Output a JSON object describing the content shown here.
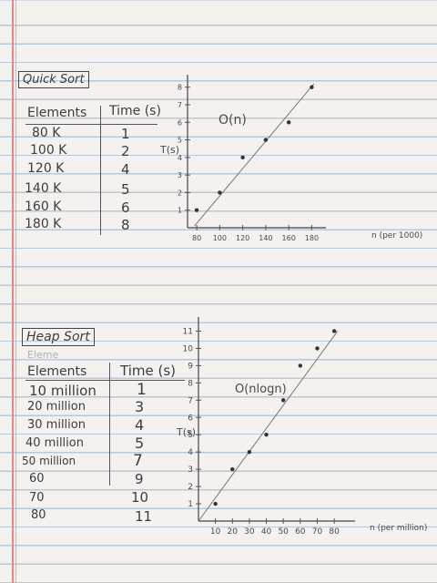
{
  "quick": {
    "title": "Quick Sort",
    "col_elements": "Elements",
    "col_time": "Time (s)",
    "rows": [
      {
        "elements": "80 K",
        "time": "1"
      },
      {
        "elements": "100 K",
        "time": "2"
      },
      {
        "elements": "120 K",
        "time": "4"
      },
      {
        "elements": "140 K",
        "time": "5"
      },
      {
        "elements": "160 K",
        "time": "6"
      },
      {
        "elements": "180 K",
        "time": "8"
      }
    ]
  },
  "heap": {
    "title": "Heap Sort",
    "crossed": "Eleme",
    "col_elements": "Elements",
    "col_time": "Time (s)",
    "rows": [
      {
        "elements": "10 million",
        "time": "1"
      },
      {
        "elements": "20 million",
        "time": "3"
      },
      {
        "elements": "30 million",
        "time": "4"
      },
      {
        "elements": "40 million",
        "time": "5"
      },
      {
        "elements": "50 million",
        "time": "7"
      },
      {
        "elements": "60",
        "time": "9"
      },
      {
        "elements": "70",
        "time": "10"
      },
      {
        "elements": "80",
        "time": "11"
      }
    ]
  },
  "chart_data": [
    {
      "type": "scatter",
      "title": "",
      "xlabel": "n (per 1000)",
      "ylabel": "T(s)",
      "annotation": "O(n)",
      "xticks": [
        "80",
        "100",
        "120",
        "140",
        "160",
        "180"
      ],
      "yticks": [
        "1",
        "2",
        "3",
        "4",
        "5",
        "6",
        "7",
        "8"
      ],
      "xlim": [
        72,
        186
      ],
      "ylim": [
        0,
        8.4
      ],
      "x": [
        80,
        100,
        120,
        140,
        160,
        180
      ],
      "y": [
        1,
        2,
        4,
        5,
        6,
        8
      ],
      "trend": {
        "x": [
          78,
          182
        ],
        "y": [
          0.1,
          8.2
        ]
      }
    },
    {
      "type": "scatter",
      "title": "",
      "xlabel": "n (per million)",
      "ylabel": "T(s)",
      "annotation": "O(nlogn)",
      "xticks": [
        "10",
        "20",
        "30",
        "40",
        "50",
        "60",
        "70",
        "80"
      ],
      "yticks": [
        "1",
        "2",
        "3",
        "4",
        "5",
        "6",
        "7",
        "8",
        "9",
        "10",
        "11"
      ],
      "xlim": [
        0,
        88
      ],
      "ylim": [
        0,
        11.5
      ],
      "x": [
        10,
        20,
        30,
        40,
        50,
        60,
        70,
        80
      ],
      "y": [
        1,
        3,
        4,
        5,
        7,
        9,
        10,
        11
      ],
      "trend": {
        "x": [
          0,
          82
        ],
        "y": [
          0,
          11
        ]
      }
    }
  ]
}
